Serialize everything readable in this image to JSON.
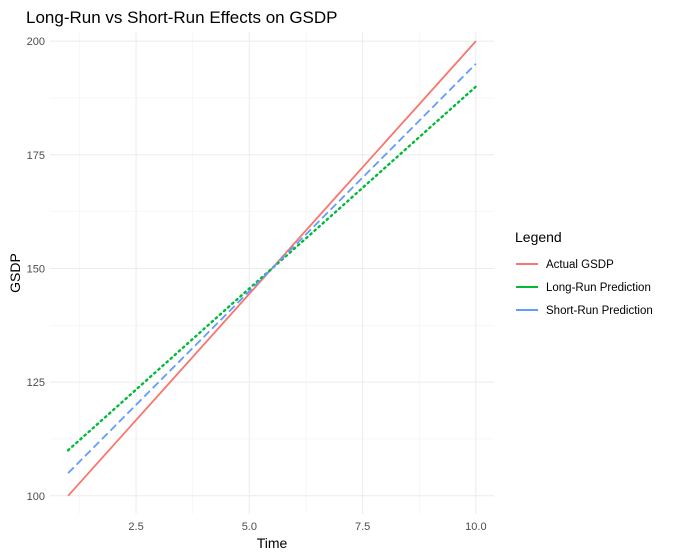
{
  "chart_data": {
    "type": "line",
    "title": "Long-Run vs Short-Run Effects on GSDP",
    "xlabel": "Time",
    "ylabel": "GSDP",
    "xlim": [
      0.6,
      10.4
    ],
    "ylim": [
      96,
      202
    ],
    "xticks": [
      2.5,
      5.0,
      7.5,
      10.0
    ],
    "xtick_labels": [
      "2.5",
      "5.0",
      "7.5",
      "10.0"
    ],
    "yticks": [
      100,
      125,
      150,
      175,
      200
    ],
    "ytick_labels": [
      "100",
      "125",
      "150",
      "175",
      "200"
    ],
    "grid": true,
    "legend": {
      "title": "Legend",
      "position": "right"
    },
    "x": [
      1,
      2,
      3,
      4,
      5,
      6,
      7,
      8,
      9,
      10
    ],
    "series": [
      {
        "name": "Actual GSDP",
        "color": "#F8766D",
        "linestyle": "solid",
        "values": [
          100,
          111.1,
          122.2,
          133.3,
          144.4,
          155.6,
          166.7,
          177.8,
          188.9,
          200
        ]
      },
      {
        "name": "Long-Run Prediction",
        "color": "#00BA38",
        "linestyle": "dotted",
        "values": [
          110,
          118.9,
          127.8,
          136.7,
          145.6,
          154.4,
          163.3,
          172.2,
          181.1,
          190
        ]
      },
      {
        "name": "Short-Run Prediction",
        "color": "#619CFF",
        "linestyle": "dashed",
        "values": [
          105,
          115,
          125,
          135,
          145,
          155,
          165,
          175,
          185,
          195
        ]
      }
    ]
  }
}
